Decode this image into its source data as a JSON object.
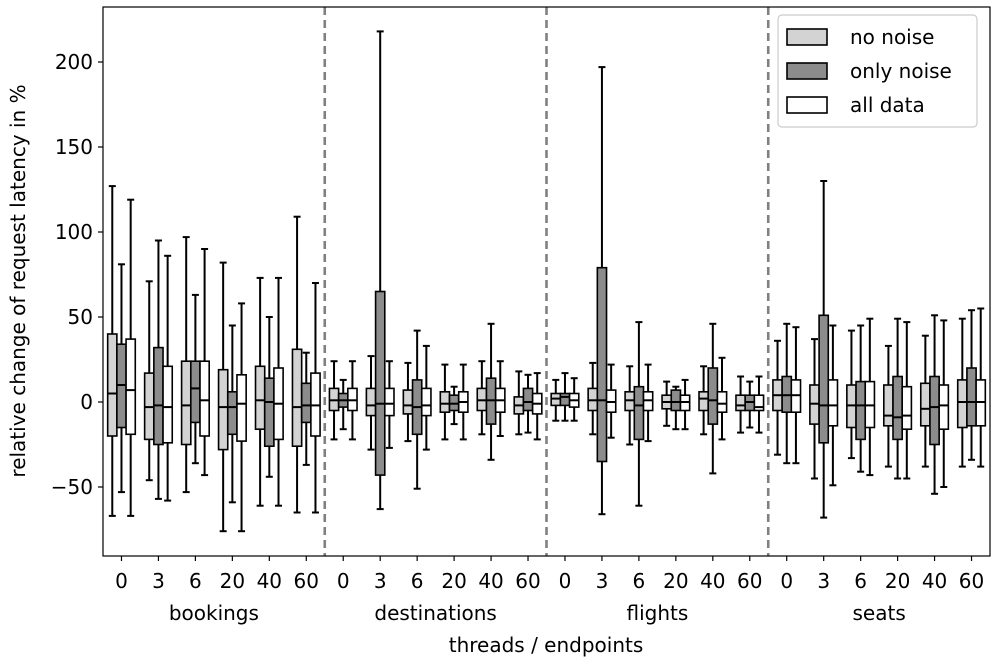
{
  "chart_data": {
    "type": "box",
    "title": "",
    "xlabel": "threads / endpoints",
    "ylabel": "relative change of request latency in %",
    "ylim": [
      -90,
      232
    ],
    "yticks": [
      -50,
      0,
      50,
      100,
      150,
      200
    ],
    "groups": [
      "bookings",
      "destinations",
      "flights",
      "seats"
    ],
    "threads": [
      "0",
      "3",
      "6",
      "20",
      "40",
      "60"
    ],
    "series": [
      {
        "name": "no noise",
        "color": "#d3d3d3"
      },
      {
        "name": "only noise",
        "color": "#8c8c8c"
      },
      {
        "name": "all data",
        "color": "#ffffff"
      }
    ],
    "legend_position": "top-right",
    "separators": "dashed vertical lines between endpoint groups",
    "boxes": {
      "bookings": [
        [
          [
            -67,
            -20,
            5,
            40,
            127
          ],
          [
            -53,
            -15,
            10,
            34,
            81
          ],
          [
            -67,
            -19,
            7,
            37,
            119
          ]
        ],
        [
          [
            -46,
            -22,
            -3,
            17,
            71
          ],
          [
            -57,
            -25,
            -2,
            32,
            95
          ],
          [
            -58,
            -24,
            -3,
            21,
            86
          ]
        ],
        [
          [
            -53,
            -25,
            -2,
            24,
            97
          ],
          [
            -36,
            -12,
            8,
            24,
            63
          ],
          [
            -43,
            -20,
            1,
            24,
            90
          ]
        ],
        [
          [
            -76,
            -28,
            -3,
            19,
            82
          ],
          [
            -59,
            -19,
            -3,
            6,
            45
          ],
          [
            -76,
            -23,
            -1,
            16,
            58
          ]
        ],
        [
          [
            -61,
            -16,
            1,
            21,
            73
          ],
          [
            -44,
            -26,
            0,
            14,
            50
          ],
          [
            -61,
            -22,
            -1,
            20,
            73
          ]
        ],
        [
          [
            -65,
            -26,
            -3,
            31,
            109
          ],
          [
            -37,
            -12,
            -2,
            11,
            29
          ],
          [
            -65,
            -20,
            -2,
            17,
            70
          ]
        ]
      ],
      "destinations": [
        [
          [
            -22,
            -5,
            1,
            8,
            24
          ],
          [
            -16,
            -3,
            1,
            5,
            13
          ],
          [
            -22,
            -5,
            1,
            8,
            24
          ]
        ],
        [
          [
            -28,
            -8,
            -2,
            8,
            27
          ],
          [
            -63,
            -43,
            -1,
            65,
            218
          ],
          [
            -27,
            -8,
            -1,
            8,
            24
          ]
        ],
        [
          [
            -23,
            -7,
            -2,
            7,
            23
          ],
          [
            -51,
            -19,
            -3,
            13,
            42
          ],
          [
            -28,
            -8,
            -2,
            8,
            33
          ]
        ],
        [
          [
            -22,
            -6,
            -1,
            6,
            22
          ],
          [
            -13,
            -5,
            -1,
            4,
            9
          ],
          [
            -22,
            -6,
            0,
            6,
            22
          ]
        ],
        [
          [
            -19,
            -5,
            1,
            8,
            24
          ],
          [
            -34,
            -13,
            1,
            14,
            46
          ],
          [
            -20,
            -6,
            1,
            8,
            24
          ]
        ],
        [
          [
            -19,
            -7,
            -2,
            3,
            18
          ],
          [
            -18,
            -5,
            0,
            8,
            16
          ],
          [
            -22,
            -7,
            -1,
            5,
            17
          ]
        ]
      ],
      "flights": [
        [
          [
            -11,
            -2,
            2,
            5,
            13
          ],
          [
            -11,
            -2,
            3,
            5,
            17
          ],
          [
            -11,
            -3,
            1,
            5,
            14
          ]
        ],
        [
          [
            -19,
            -5,
            1,
            8,
            23
          ],
          [
            -66,
            -35,
            1,
            79,
            197
          ],
          [
            -21,
            -6,
            0,
            7,
            22
          ]
        ],
        [
          [
            -25,
            -5,
            1,
            6,
            21
          ],
          [
            -61,
            -22,
            -2,
            9,
            47
          ],
          [
            -23,
            -5,
            1,
            6,
            22
          ]
        ],
        [
          [
            -14,
            -4,
            0,
            4,
            12
          ],
          [
            -16,
            -5,
            0,
            7,
            9
          ],
          [
            -16,
            -5,
            0,
            4,
            13
          ]
        ],
        [
          [
            -19,
            -5,
            2,
            6,
            21
          ],
          [
            -42,
            -13,
            1,
            20,
            46
          ],
          [
            -22,
            -6,
            -1,
            6,
            26
          ]
        ],
        [
          [
            -18,
            -5,
            -2,
            4,
            15
          ],
          [
            -15,
            -5,
            0,
            4,
            12
          ],
          [
            -18,
            -5,
            -3,
            4,
            15
          ]
        ]
      ],
      "seats": [
        [
          [
            -31,
            -5,
            4,
            13,
            36
          ],
          [
            -36,
            -6,
            4,
            15,
            46
          ],
          [
            -36,
            -6,
            4,
            13,
            44
          ]
        ],
        [
          [
            -45,
            -13,
            -1,
            10,
            37
          ],
          [
            -68,
            -24,
            -2,
            51,
            130
          ],
          [
            -49,
            -14,
            -2,
            13,
            45
          ]
        ],
        [
          [
            -33,
            -15,
            -2,
            10,
            42
          ],
          [
            -41,
            -22,
            -2,
            12,
            45
          ],
          [
            -43,
            -15,
            -2,
            12,
            49
          ]
        ],
        [
          [
            -38,
            -14,
            -8,
            10,
            33
          ],
          [
            -45,
            -22,
            -9,
            15,
            49
          ],
          [
            -45,
            -16,
            -8,
            9,
            47
          ]
        ],
        [
          [
            -38,
            -14,
            -4,
            11,
            39
          ],
          [
            -54,
            -25,
            -3,
            15,
            51
          ],
          [
            -50,
            -16,
            -2,
            10,
            48
          ]
        ],
        [
          [
            -38,
            -15,
            0,
            13,
            49
          ],
          [
            -34,
            -14,
            0,
            20,
            54
          ],
          [
            -38,
            -14,
            0,
            13,
            55
          ]
        ]
      ]
    }
  }
}
